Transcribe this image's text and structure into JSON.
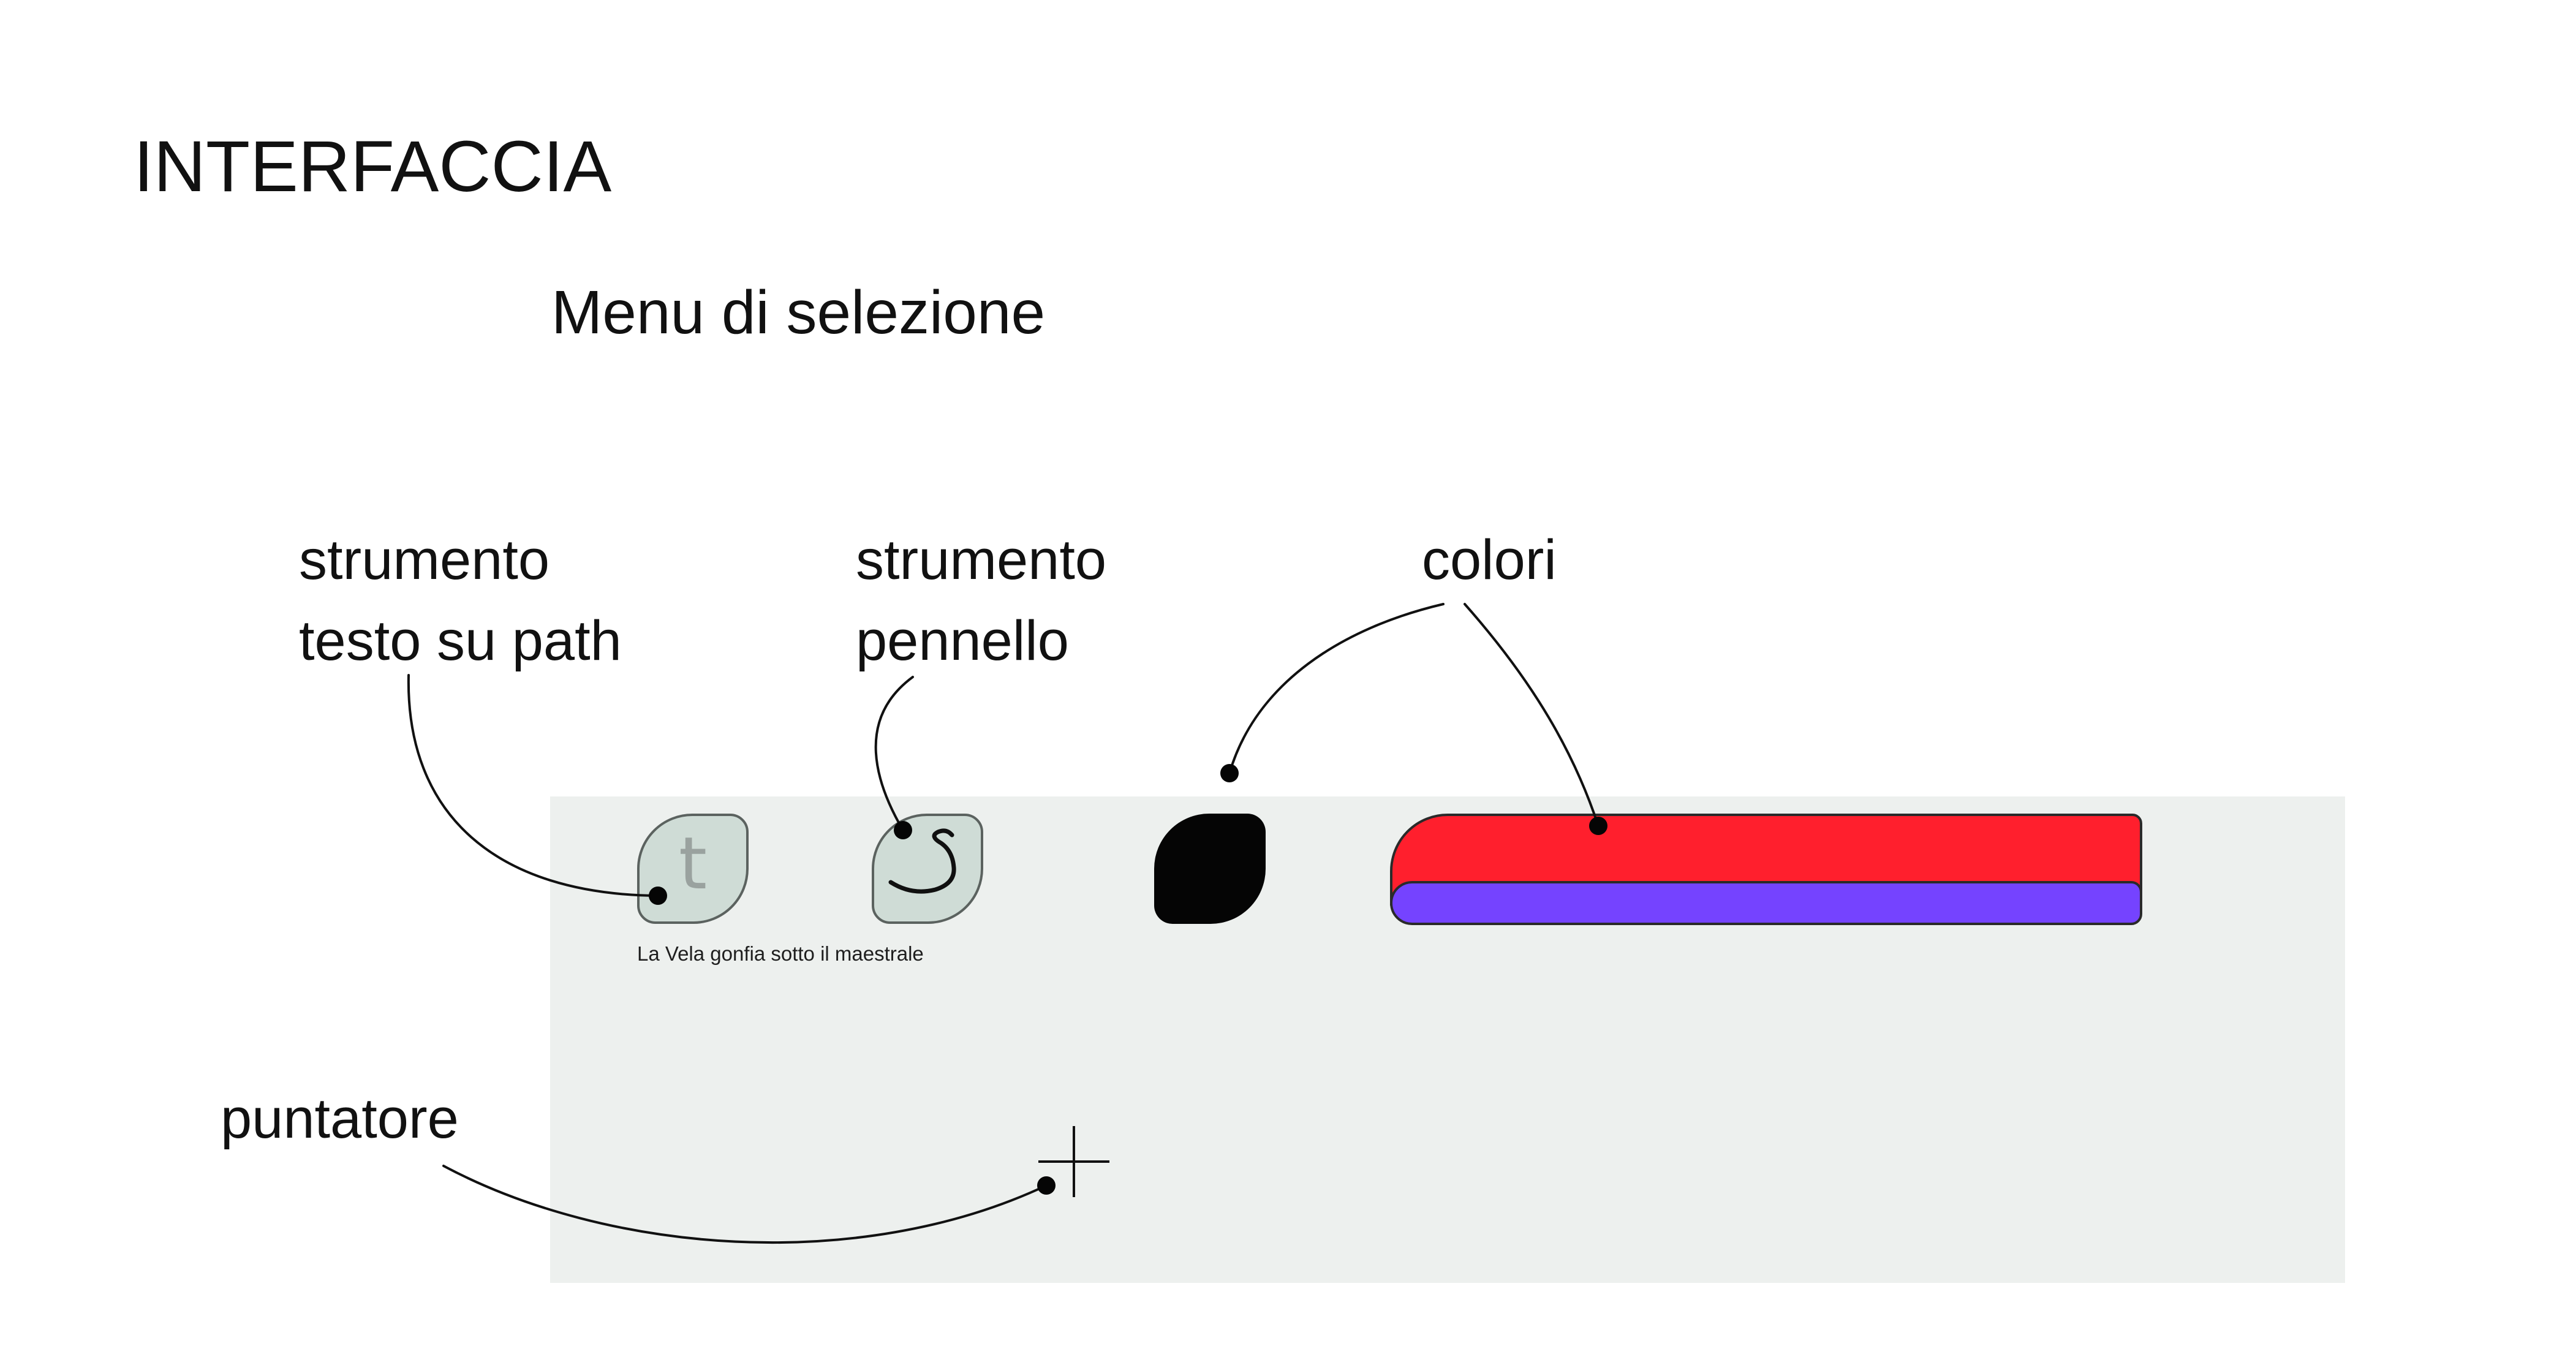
{
  "title": "INTERFACCIA",
  "subtitle": "Menu di selezione",
  "callouts": {
    "text_tool": [
      "strumento",
      "testo su path"
    ],
    "brush_tool": [
      "strumento",
      "pennello"
    ],
    "colors": [
      "colori"
    ],
    "pointer": [
      "puntatore"
    ]
  },
  "interface": {
    "text_tool_icon": "t",
    "sample_text": "La Vela gonfia sotto il maestrale",
    "panel_color": "#edf0ee",
    "tool_button_color": "#cfdcd6",
    "active_color": "#050505",
    "palette_colors": [
      "#ff1f2d",
      "#7543ff"
    ],
    "icons": [
      "text-path-icon",
      "brush-icon",
      "crosshair-pointer-icon"
    ]
  }
}
